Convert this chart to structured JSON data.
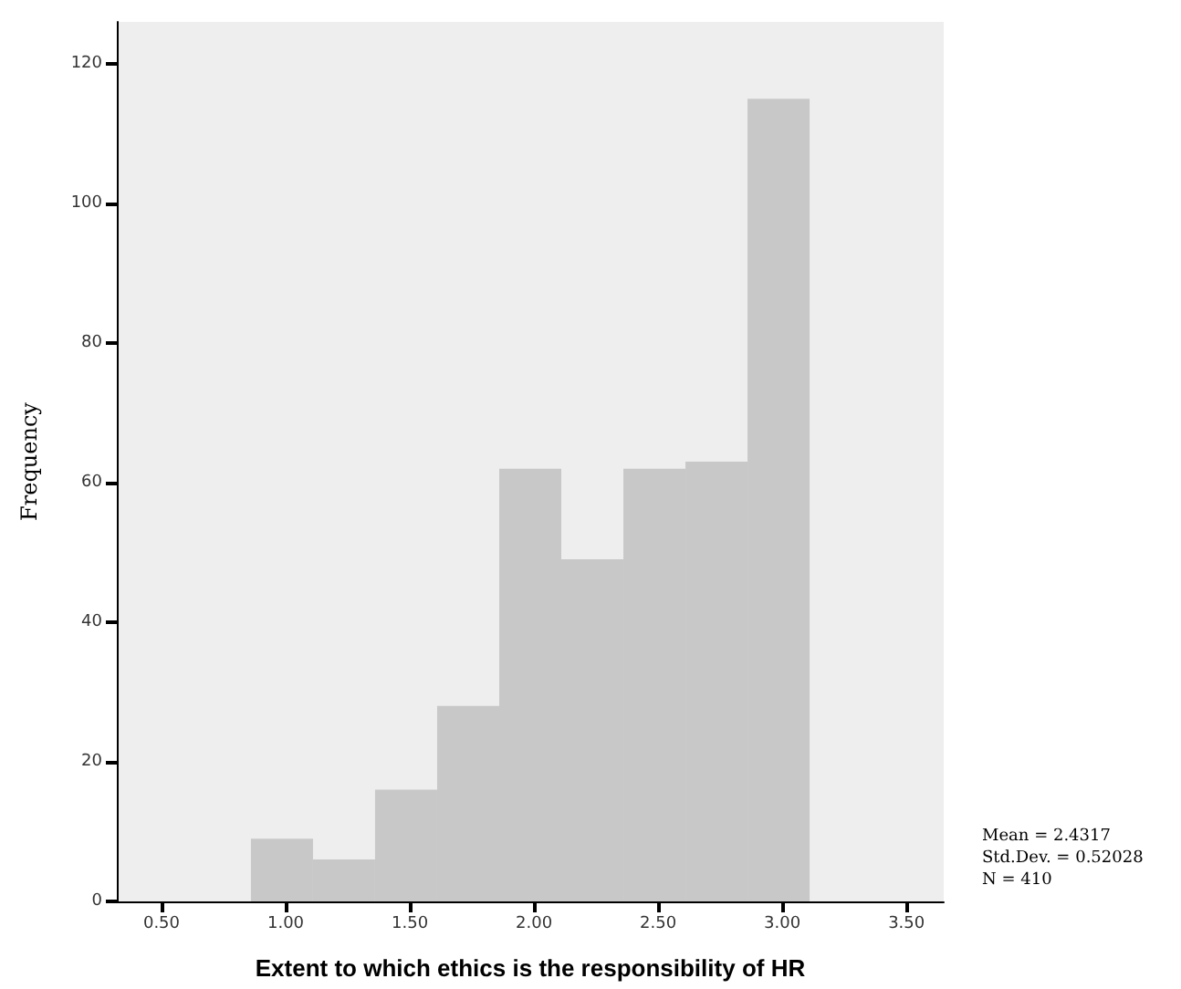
{
  "chart_data": {
    "type": "histogram",
    "xlabel": "Extent to which ethics is the responsibility of HR",
    "ylabel": "Frequency",
    "bins": [
      0.86,
      1.11,
      1.36,
      1.61,
      1.86,
      2.11,
      2.36,
      2.61,
      2.86,
      3.11
    ],
    "values": [
      9,
      6,
      16,
      28,
      62,
      49,
      62,
      63,
      115
    ],
    "color": "#c8c8c8",
    "xlim": [
      0.32,
      3.65
    ],
    "xticks": [
      {
        "value": 0.5,
        "label": "0.50"
      },
      {
        "value": 1,
        "label": "1.00"
      },
      {
        "value": 1.5,
        "label": "1.50"
      },
      {
        "value": 2,
        "label": "2.00"
      },
      {
        "value": 2.5,
        "label": "2.50"
      },
      {
        "value": 3,
        "label": "3.00"
      },
      {
        "value": 3.5,
        "label": "3.50"
      }
    ],
    "ylim": [
      0,
      126
    ],
    "yticks": [
      0,
      20,
      40,
      60,
      80,
      100,
      120
    ],
    "grid": false,
    "annotations": [
      "Mean = 2.4317",
      "Std.Dev. = 0.52028",
      "N = 410"
    ]
  }
}
